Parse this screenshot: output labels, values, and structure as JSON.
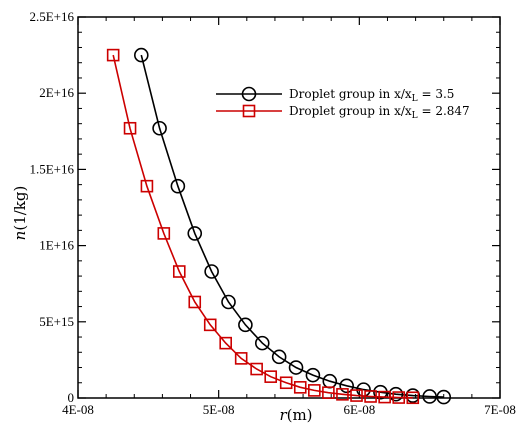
{
  "chart_data": {
    "type": "line",
    "title": "",
    "xlabel": {
      "var": "r",
      "unit": "(m)"
    },
    "ylabel": {
      "var": "n",
      "unit": "(1/kg)"
    },
    "xlim": [
      4e-08,
      7e-08
    ],
    "ylim": [
      0,
      2.5e+16
    ],
    "x_ticks": [
      "4E-08",
      "5E-08",
      "6E-08",
      "7E-08"
    ],
    "y_ticks": [
      "0",
      "5E+15",
      "1E+16",
      "1.5E+16",
      "2E+16",
      "2.5E+16"
    ],
    "grid": false,
    "legend_position": "top-right",
    "series": [
      {
        "name": "Droplet group in x/x_L = 3.5",
        "legend_main": "Droplet group in x/x",
        "legend_sub": "L",
        "legend_tail": " = 3.5",
        "color": "#000000",
        "marker": "circle",
        "x": [
          4.45e-08,
          4.58e-08,
          4.71e-08,
          4.83e-08,
          4.95e-08,
          5.07e-08,
          5.19e-08,
          5.31e-08,
          5.43e-08,
          5.55e-08,
          5.67e-08,
          5.79e-08,
          5.91e-08,
          6.03e-08,
          6.15e-08,
          6.26e-08,
          6.38e-08,
          6.5e-08,
          6.6e-08
        ],
        "y": [
          2.25e+16,
          1.77e+16,
          1.39e+16,
          1.08e+16,
          8300000000000000.0,
          6300000000000000.0,
          4800000000000000.0,
          3600000000000000.0,
          2700000000000000.0,
          2000000000000000.0,
          1500000000000000.0,
          1100000000000000.0,
          800000000000000.0,
          550000000000000.0,
          380000000000000.0,
          250000000000000.0,
          160000000000000.0,
          100000000000000.0,
          60000000000000.0
        ]
      },
      {
        "name": "Droplet group in x/x_L = 2.847",
        "legend_main": "Droplet group in x/x",
        "legend_sub": "L",
        "legend_tail": " = 2.847",
        "color": "#cc0000",
        "marker": "square",
        "x": [
          4.25e-08,
          4.37e-08,
          4.49e-08,
          4.61e-08,
          4.72e-08,
          4.83e-08,
          4.94e-08,
          5.05e-08,
          5.16e-08,
          5.27e-08,
          5.37e-08,
          5.48e-08,
          5.58e-08,
          5.68e-08,
          5.78e-08,
          5.88e-08,
          5.98e-08,
          6.08e-08,
          6.18e-08,
          6.28e-08,
          6.38e-08
        ],
        "y": [
          2.25e+16,
          1.77e+16,
          1.39e+16,
          1.08e+16,
          8300000000000000.0,
          6300000000000000.0,
          4800000000000000.0,
          3600000000000000.0,
          2600000000000000.0,
          1900000000000000.0,
          1400000000000000.0,
          1000000000000000.0,
          700000000000000.0,
          500000000000000.0,
          350000000000000.0,
          240000000000000.0,
          160000000000000.0,
          100000000000000.0,
          60000000000000.0,
          30000000000000.0,
          15000000000000.0
        ]
      }
    ]
  }
}
